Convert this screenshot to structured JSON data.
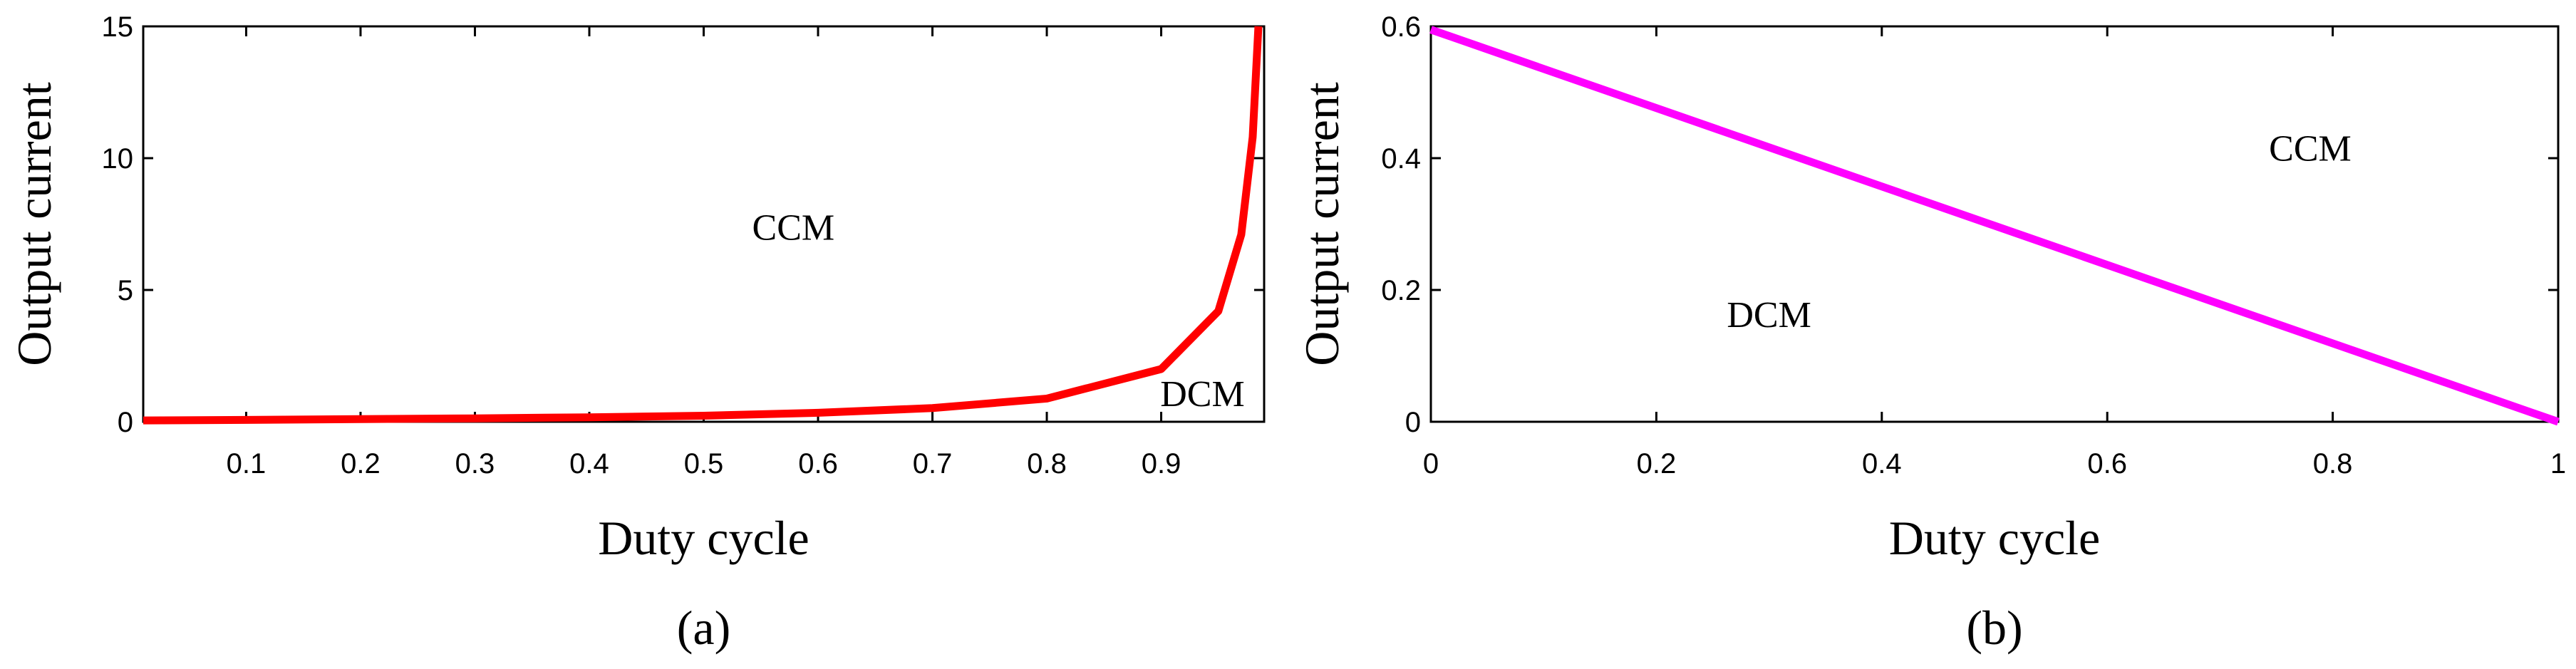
{
  "chart_data": [
    {
      "type": "line",
      "caption": "(a)",
      "x_label": "Duty cycle",
      "y_label": "Output current",
      "x": [
        0.01,
        0.1,
        0.2,
        0.3,
        0.4,
        0.5,
        0.6,
        0.7,
        0.8,
        0.9,
        0.95,
        0.97,
        0.98,
        0.985
      ],
      "values": [
        0.05,
        0.07,
        0.1,
        0.13,
        0.17,
        0.23,
        0.34,
        0.52,
        0.88,
        2,
        4.2,
        7.1,
        10.8,
        15
      ],
      "color": "#ff0000",
      "xlim": [
        0.01,
        0.99
      ],
      "ylim": [
        0,
        15
      ],
      "xticks": [
        0.1,
        0.2,
        0.3,
        0.4,
        0.5,
        0.6,
        0.7,
        0.8,
        0.9
      ],
      "yticks": [
        0,
        5,
        10,
        15
      ],
      "annotations": [
        "CCM",
        "DCM"
      ]
    },
    {
      "type": "line",
      "caption": "(b)",
      "x_label": "Duty cycle",
      "y_label": "Output current",
      "x": [
        0,
        1
      ],
      "values": [
        0.595,
        0
      ],
      "color": "#ff00ff",
      "xlim": [
        0,
        1
      ],
      "ylim": [
        0,
        0.6
      ],
      "xticks": [
        0,
        0.2,
        0.4,
        0.6,
        0.8,
        1
      ],
      "yticks": [
        0,
        0.2,
        0.4,
        0.6
      ],
      "annotations": [
        "CCM",
        "DCM"
      ]
    }
  ]
}
